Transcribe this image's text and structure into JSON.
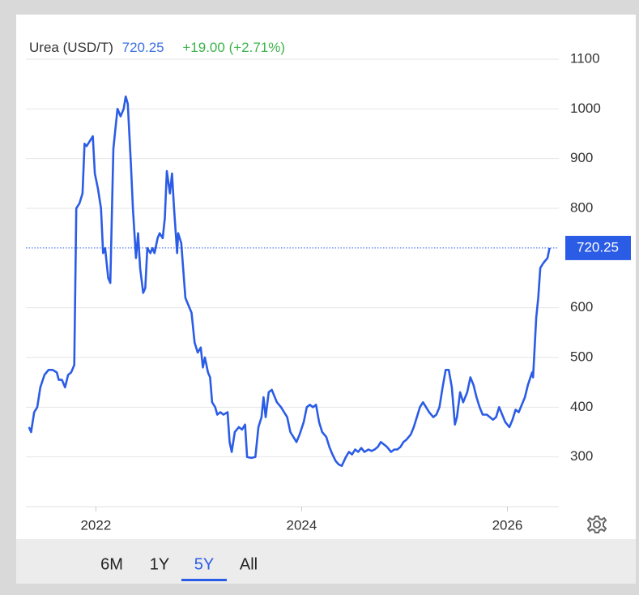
{
  "chart_data": {
    "type": "line",
    "current_value": 720.25,
    "change_label": "+19.00 (+2.71%)",
    "ranges": [
      "6M",
      "1Y",
      "5Y",
      "All"
    ],
    "selected_range": 2,
    "xlim": [
      2021.32,
      2026.5
    ],
    "xticks": [
      2022,
      2024,
      2026
    ],
    "ylim": [
      200,
      1100
    ],
    "yticks": [
      300,
      400,
      500,
      600,
      800,
      900,
      1000,
      1100
    ],
    "grid": true,
    "x": [
      2021.35,
      2021.37,
      2021.4,
      2021.43,
      2021.46,
      2021.5,
      2021.54,
      2021.58,
      2021.62,
      2021.64,
      2021.67,
      2021.7,
      2021.73,
      2021.76,
      2021.79,
      2021.81,
      2021.84,
      2021.87,
      2021.89,
      2021.91,
      2021.94,
      2021.97,
      2021.99,
      2022.02,
      2022.05,
      2022.07,
      2022.09,
      2022.12,
      2022.14,
      2022.17,
      2022.19,
      2022.21,
      2022.24,
      2022.27,
      2022.29,
      2022.31,
      2022.34,
      2022.36,
      2022.39,
      2022.41,
      2022.43,
      2022.46,
      2022.48,
      2022.5,
      2022.53,
      2022.55,
      2022.57,
      2022.6,
      2022.62,
      2022.65,
      2022.67,
      2022.69,
      2022.72,
      2022.74,
      2022.76,
      2022.79,
      2022.8,
      2022.83,
      2022.87,
      2022.9,
      2022.93,
      2022.96,
      2022.99,
      2023.02,
      2023.04,
      2023.06,
      2023.09,
      2023.11,
      2023.13,
      2023.16,
      2023.18,
      2023.21,
      2023.24,
      2023.28,
      2023.3,
      2023.32,
      2023.35,
      2023.39,
      2023.42,
      2023.45,
      2023.47,
      2023.51,
      2023.55,
      2023.58,
      2023.61,
      2023.63,
      2023.65,
      2023.68,
      2023.71,
      2023.73,
      2023.76,
      2023.8,
      2023.83,
      2023.86,
      2023.89,
      2023.92,
      2023.95,
      2023.98,
      2024.02,
      2024.05,
      2024.08,
      2024.11,
      2024.14,
      2024.17,
      2024.2,
      2024.24,
      2024.27,
      2024.3,
      2024.33,
      2024.36,
      2024.39,
      2024.43,
      2024.46,
      2024.49,
      2024.52,
      2024.55,
      2024.58,
      2024.61,
      2024.65,
      2024.68,
      2024.71,
      2024.74,
      2024.77,
      2024.8,
      2024.83,
      2024.87,
      2024.9,
      2024.93,
      2024.96,
      2024.99,
      2025.02,
      2025.06,
      2025.09,
      2025.12,
      2025.15,
      2025.18,
      2025.21,
      2025.24,
      2025.28,
      2025.31,
      2025.34,
      2025.37,
      2025.4,
      2025.43,
      2025.46,
      2025.49,
      2025.51,
      2025.54,
      2025.57,
      2025.61,
      2025.64,
      2025.67,
      2025.7,
      2025.73,
      2025.76,
      2025.8,
      2025.83,
      2025.86,
      2025.89,
      2025.92,
      2025.95,
      2025.98,
      2026.02,
      2026.05,
      2026.08,
      2026.11,
      2026.14,
      2026.17,
      2026.2,
      2026.24,
      2026.25,
      2026.28,
      2026.3,
      2026.32,
      2026.35,
      2026.39,
      2026.41
    ],
    "series": [
      {
        "name": "Urea (USD/T)",
        "color": "#2b5ce6",
        "values": [
          360,
          350,
          390,
          400,
          440,
          465,
          475,
          475,
          470,
          455,
          455,
          440,
          465,
          470,
          485,
          800,
          810,
          830,
          930,
          925,
          935,
          945,
          870,
          840,
          800,
          710,
          720,
          660,
          650,
          920,
          960,
          1000,
          985,
          1000,
          1025,
          1010,
          890,
          800,
          700,
          750,
          680,
          630,
          640,
          720,
          710,
          720,
          710,
          740,
          750,
          740,
          780,
          875,
          830,
          870,
          800,
          710,
          750,
          730,
          620,
          605,
          590,
          530,
          510,
          520,
          480,
          500,
          470,
          460,
          410,
          400,
          385,
          390,
          385,
          390,
          330,
          310,
          350,
          360,
          355,
          365,
          300,
          298,
          300,
          360,
          380,
          420,
          380,
          430,
          435,
          425,
          410,
          400,
          390,
          380,
          350,
          340,
          330,
          345,
          370,
          400,
          405,
          400,
          405,
          370,
          350,
          340,
          320,
          305,
          292,
          285,
          282,
          300,
          310,
          305,
          315,
          310,
          318,
          310,
          315,
          312,
          315,
          320,
          330,
          325,
          320,
          310,
          315,
          315,
          320,
          330,
          335,
          345,
          360,
          380,
          400,
          410,
          400,
          390,
          380,
          385,
          400,
          440,
          475,
          475,
          440,
          365,
          380,
          430,
          410,
          430,
          460,
          445,
          420,
          400,
          385,
          385,
          380,
          375,
          380,
          400,
          385,
          370,
          360,
          375,
          395,
          390,
          405,
          420,
          445,
          470,
          460,
          580,
          620,
          680,
          690,
          700,
          720.25
        ]
      }
    ]
  }
}
